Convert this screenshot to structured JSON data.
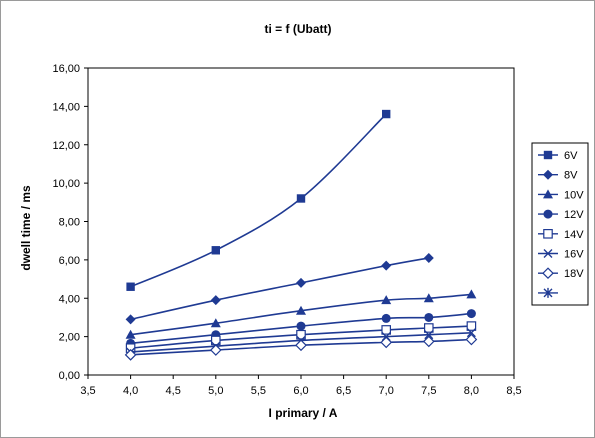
{
  "chart_data": {
    "type": "line",
    "title": "ti = f (Ubatt)",
    "xlabel": "I primary / A",
    "ylabel": "dwell time / ms",
    "xlim": [
      3.5,
      8.5
    ],
    "ylim": [
      0,
      16
    ],
    "x_ticks": [
      "3,5",
      "4,0",
      "4,5",
      "5,0",
      "5,5",
      "6,0",
      "6,5",
      "7,0",
      "7,5",
      "8,0",
      "8,5"
    ],
    "y_ticks": [
      "0,00",
      "2,00",
      "4,00",
      "6,00",
      "8,00",
      "10,00",
      "12,00",
      "14,00",
      "16,00"
    ],
    "legend_position": "right",
    "grid": false,
    "line_color": "#1F3A93",
    "series": [
      {
        "name": "6V",
        "marker": "square",
        "x": [
          4.0,
          5.0,
          6.0,
          7.0
        ],
        "y": [
          4.6,
          6.5,
          9.2,
          13.6
        ]
      },
      {
        "name": "8V",
        "marker": "diamond",
        "x": [
          4.0,
          5.0,
          6.0,
          7.0,
          7.5
        ],
        "y": [
          2.9,
          3.9,
          4.8,
          5.7,
          6.1
        ]
      },
      {
        "name": "10V",
        "marker": "triangle",
        "x": [
          4.0,
          5.0,
          6.0,
          7.0,
          7.5,
          8.0
        ],
        "y": [
          2.1,
          2.7,
          3.35,
          3.9,
          4.0,
          4.2
        ]
      },
      {
        "name": "12V",
        "marker": "circle",
        "x": [
          4.0,
          5.0,
          6.0,
          7.0,
          7.5,
          8.0
        ],
        "y": [
          1.65,
          2.1,
          2.55,
          2.95,
          3.0,
          3.2
        ]
      },
      {
        "name": "14V",
        "marker": "square-open",
        "x": [
          4.0,
          5.0,
          6.0,
          7.0,
          7.5,
          8.0
        ],
        "y": [
          1.4,
          1.8,
          2.1,
          2.35,
          2.45,
          2.55
        ]
      },
      {
        "name": "16V",
        "marker": "x",
        "x": [
          4.0,
          5.0,
          6.0,
          7.0,
          7.5,
          8.0
        ],
        "y": [
          1.2,
          1.5,
          1.8,
          2.0,
          2.1,
          2.2
        ]
      },
      {
        "name": "18V",
        "marker": "diamond-open",
        "x": [
          4.0,
          5.0,
          6.0,
          7.0,
          7.5,
          8.0
        ],
        "y": [
          1.05,
          1.3,
          1.55,
          1.7,
          1.75,
          1.85
        ]
      },
      {
        "name": "",
        "marker": "asterisk",
        "x": [],
        "y": []
      }
    ]
  }
}
